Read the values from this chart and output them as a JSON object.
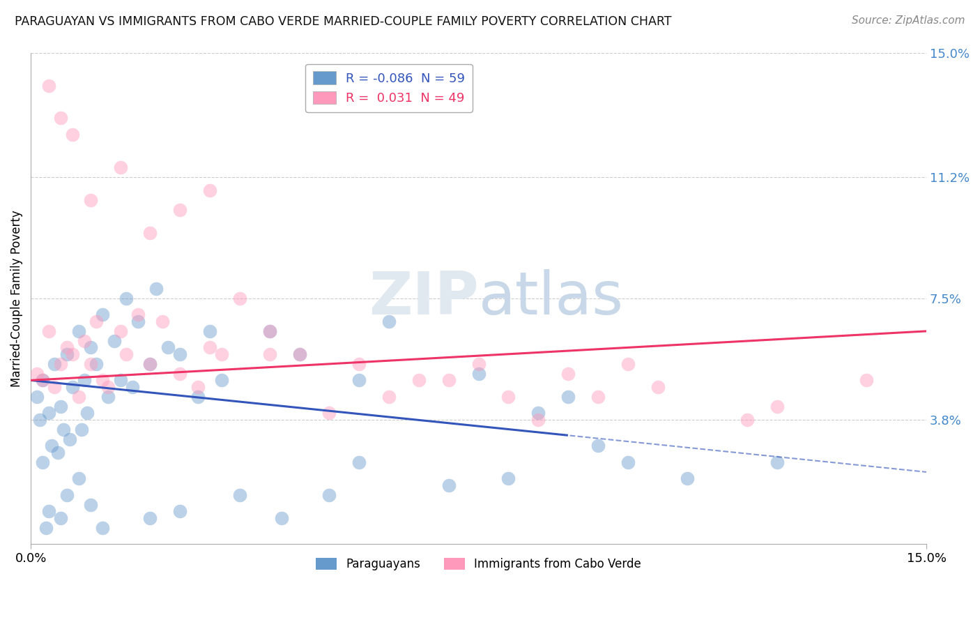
{
  "title": "PARAGUAYAN VS IMMIGRANTS FROM CABO VERDE MARRIED-COUPLE FAMILY POVERTY CORRELATION CHART",
  "source": "Source: ZipAtlas.com",
  "ylabel": "Married-Couple Family Poverty",
  "xlim": [
    0.0,
    15.0
  ],
  "ylim": [
    0.0,
    15.0
  ],
  "ytick_vals": [
    3.8,
    7.5,
    11.2,
    15.0
  ],
  "ytick_labels": [
    "3.8%",
    "7.5%",
    "11.2%",
    "15.0%"
  ],
  "xtick_vals": [
    0.0,
    15.0
  ],
  "xtick_labels": [
    "0.0%",
    "15.0%"
  ],
  "blue_color": "#6699cc",
  "pink_color": "#ff99bb",
  "blue_line_color": "#3355bb",
  "pink_line_color": "#ee3366",
  "axis_label_color": "#4488cc",
  "grid_color": "#cccccc",
  "background_color": "#ffffff",
  "title_color": "#111111",
  "source_color": "#888888",
  "watermark_color": "#e0e8f0",
  "blue_scatter_x": [
    0.1,
    0.15,
    0.2,
    0.2,
    0.3,
    0.35,
    0.4,
    0.45,
    0.5,
    0.55,
    0.6,
    0.65,
    0.7,
    0.8,
    0.85,
    0.9,
    0.95,
    1.0,
    1.1,
    1.2,
    1.3,
    1.4,
    1.5,
    1.6,
    1.7,
    1.8,
    2.0,
    2.1,
    2.3,
    2.5,
    2.8,
    3.0,
    3.2,
    4.0,
    4.5,
    5.5,
    6.0,
    7.5,
    8.5,
    9.0,
    0.25,
    0.3,
    0.5,
    0.6,
    0.8,
    1.0,
    1.2,
    2.0,
    2.5,
    3.5,
    4.2,
    5.0,
    5.5,
    7.0,
    8.0,
    9.5,
    10.0,
    11.0,
    12.5
  ],
  "blue_scatter_y": [
    4.5,
    3.8,
    5.0,
    2.5,
    4.0,
    3.0,
    5.5,
    2.8,
    4.2,
    3.5,
    5.8,
    3.2,
    4.8,
    6.5,
    3.5,
    5.0,
    4.0,
    6.0,
    5.5,
    7.0,
    4.5,
    6.2,
    5.0,
    7.5,
    4.8,
    6.8,
    5.5,
    7.8,
    6.0,
    5.8,
    4.5,
    6.5,
    5.0,
    6.5,
    5.8,
    5.0,
    6.8,
    5.2,
    4.0,
    4.5,
    0.5,
    1.0,
    0.8,
    1.5,
    2.0,
    1.2,
    0.5,
    0.8,
    1.0,
    1.5,
    0.8,
    1.5,
    2.5,
    1.8,
    2.0,
    3.0,
    2.5,
    2.0,
    2.5
  ],
  "pink_scatter_x": [
    0.1,
    0.2,
    0.3,
    0.4,
    0.5,
    0.6,
    0.7,
    0.8,
    0.9,
    1.0,
    1.1,
    1.2,
    1.3,
    1.5,
    1.6,
    1.8,
    2.0,
    2.2,
    2.5,
    2.8,
    3.0,
    3.2,
    3.5,
    4.0,
    4.5,
    5.5,
    6.5,
    7.5,
    8.0,
    8.5,
    9.5,
    10.0,
    12.0,
    0.3,
    0.5,
    0.7,
    1.0,
    1.5,
    2.0,
    2.5,
    3.0,
    4.0,
    5.0,
    6.0,
    7.0,
    9.0,
    10.5,
    12.5,
    14.0
  ],
  "pink_scatter_y": [
    5.2,
    5.0,
    6.5,
    4.8,
    5.5,
    6.0,
    5.8,
    4.5,
    6.2,
    5.5,
    6.8,
    5.0,
    4.8,
    6.5,
    5.8,
    7.0,
    5.5,
    6.8,
    5.2,
    4.8,
    6.0,
    5.8,
    7.5,
    6.5,
    5.8,
    5.5,
    5.0,
    5.5,
    4.5,
    3.8,
    4.5,
    5.5,
    3.8,
    14.0,
    13.0,
    12.5,
    10.5,
    11.5,
    9.5,
    10.2,
    10.8,
    5.8,
    4.0,
    4.5,
    5.0,
    5.2,
    4.8,
    4.2,
    5.0
  ],
  "blue_line_x0": 0.0,
  "blue_line_y0": 5.0,
  "blue_line_x1": 15.0,
  "blue_line_y1": 2.2,
  "blue_solid_end": 9.0,
  "pink_line_x0": 0.0,
  "pink_line_y0": 5.0,
  "pink_line_x1": 15.0,
  "pink_line_y1": 6.5,
  "pink_solid_end": 15.0,
  "legend_top_labels": [
    "R = -0.086  N = 59",
    "R =  0.031  N = 49"
  ],
  "legend_top_colors": [
    "#3355bb",
    "#ee3366"
  ],
  "legend_top_patch_colors": [
    "#6699cc",
    "#ff99bb"
  ],
  "legend_bot_labels": [
    "Paraguayans",
    "Immigrants from Cabo Verde"
  ],
  "legend_bot_colors": [
    "#6699cc",
    "#ff99bb"
  ]
}
